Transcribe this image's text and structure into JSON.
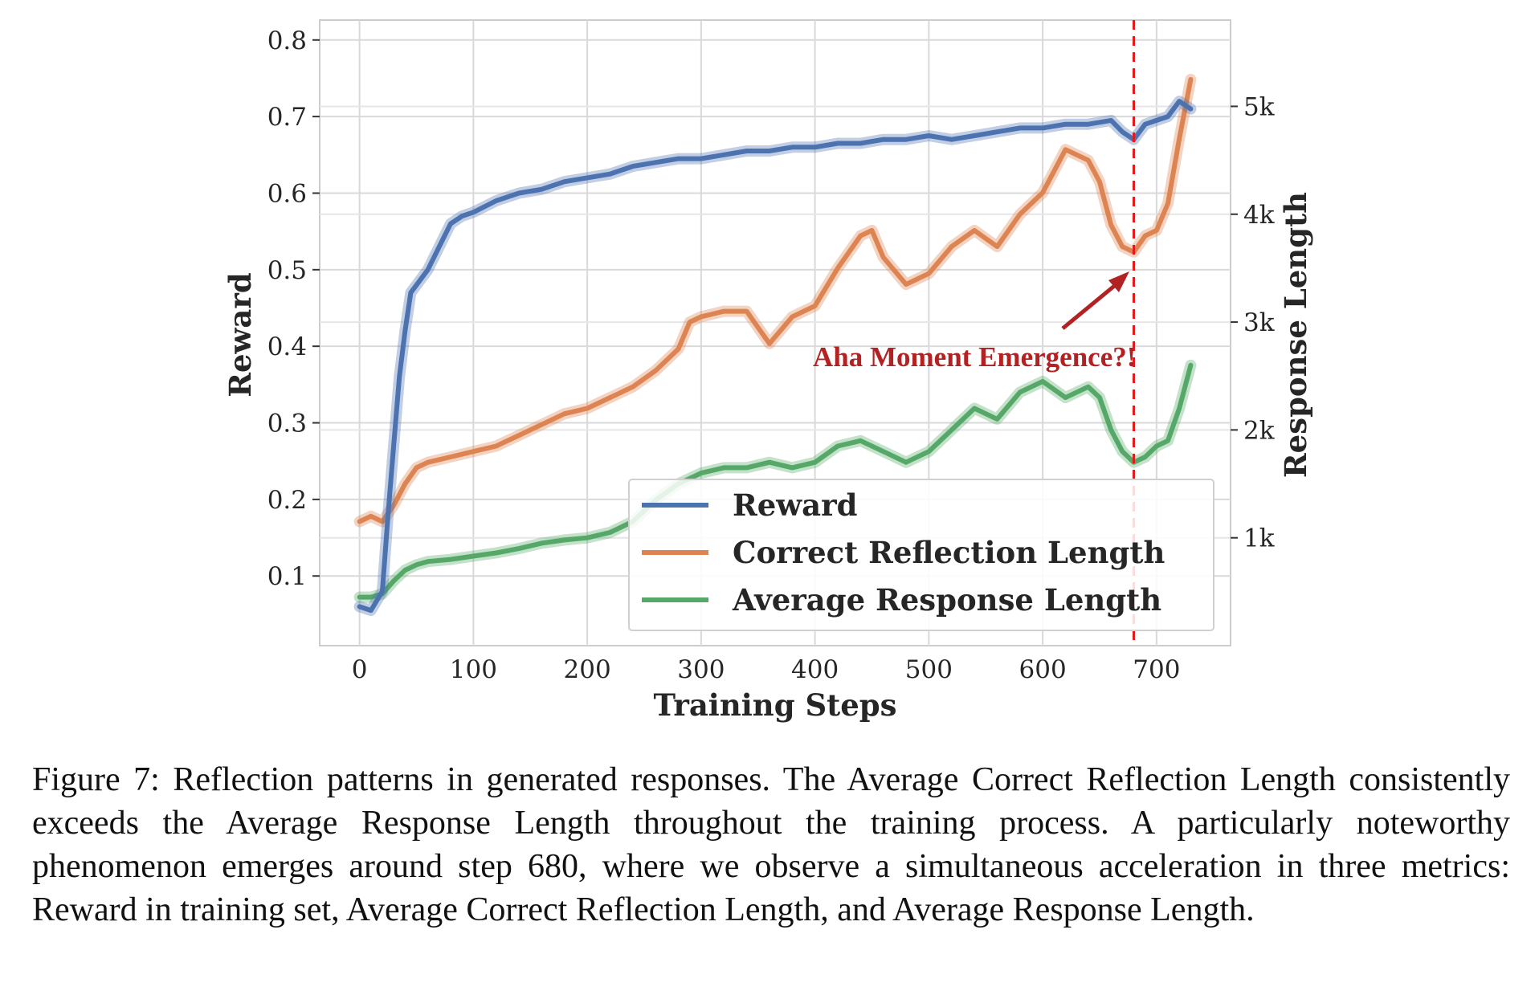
{
  "chart_data": {
    "type": "line",
    "xlabel": "Training Steps",
    "ylabel": "Reward",
    "y2label": "Response Length",
    "xlim": [
      -35,
      765
    ],
    "ylim": [
      0.009,
      0.826
    ],
    "y2lim": [
      0,
      5800
    ],
    "xticks": [
      0,
      100,
      200,
      300,
      400,
      500,
      600,
      700
    ],
    "yticks": [
      0.1,
      0.2,
      0.3,
      0.4,
      0.5,
      0.6,
      0.7,
      0.8
    ],
    "y2ticks": [
      1000,
      2000,
      3000,
      4000,
      5000
    ],
    "y2ticklabels": [
      "1k",
      "2k",
      "3k",
      "4k",
      "5k"
    ],
    "grid": true,
    "legend_position": "lower-right",
    "series": [
      {
        "name": "Reward",
        "axis": "left",
        "color": "#4c72b0",
        "x": [
          0,
          10,
          20,
          25,
          30,
          35,
          40,
          45,
          50,
          60,
          70,
          80,
          90,
          100,
          120,
          140,
          160,
          180,
          200,
          220,
          240,
          260,
          280,
          300,
          320,
          340,
          360,
          380,
          400,
          420,
          440,
          460,
          480,
          500,
          520,
          540,
          560,
          580,
          600,
          620,
          640,
          660,
          670,
          680,
          690,
          700,
          710,
          720,
          730
        ],
        "y": [
          0.06,
          0.055,
          0.08,
          0.18,
          0.27,
          0.36,
          0.42,
          0.47,
          0.48,
          0.5,
          0.53,
          0.56,
          0.57,
          0.575,
          0.59,
          0.6,
          0.605,
          0.615,
          0.62,
          0.625,
          0.635,
          0.64,
          0.645,
          0.645,
          0.65,
          0.655,
          0.655,
          0.66,
          0.66,
          0.665,
          0.665,
          0.67,
          0.67,
          0.675,
          0.67,
          0.675,
          0.68,
          0.685,
          0.685,
          0.69,
          0.69,
          0.695,
          0.68,
          0.67,
          0.69,
          0.695,
          0.7,
          0.72,
          0.71
        ]
      },
      {
        "name": "Correct Reflection Length",
        "axis": "right",
        "color": "#dd8452",
        "x": [
          0,
          10,
          20,
          30,
          40,
          50,
          60,
          80,
          100,
          120,
          140,
          160,
          180,
          200,
          220,
          240,
          260,
          280,
          290,
          300,
          320,
          340,
          350,
          360,
          380,
          400,
          420,
          440,
          450,
          460,
          480,
          500,
          520,
          540,
          560,
          580,
          600,
          620,
          640,
          650,
          660,
          670,
          680,
          690,
          700,
          710,
          720,
          730
        ],
        "y": [
          1150,
          1200,
          1150,
          1300,
          1500,
          1650,
          1700,
          1750,
          1800,
          1850,
          1950,
          2050,
          2150,
          2200,
          2300,
          2400,
          2550,
          2750,
          3000,
          3050,
          3100,
          3100,
          2950,
          2800,
          3050,
          3150,
          3500,
          3800,
          3850,
          3600,
          3350,
          3450,
          3700,
          3850,
          3700,
          4000,
          4200,
          4600,
          4500,
          4300,
          3900,
          3700,
          3650,
          3800,
          3850,
          4100,
          4700,
          5250
        ]
      },
      {
        "name": "Average Response Length",
        "axis": "right",
        "color": "#55a868",
        "x": [
          0,
          10,
          20,
          30,
          40,
          50,
          60,
          80,
          100,
          120,
          140,
          160,
          180,
          200,
          220,
          240,
          260,
          280,
          300,
          320,
          340,
          360,
          380,
          400,
          420,
          440,
          460,
          480,
          500,
          520,
          540,
          560,
          580,
          600,
          620,
          640,
          650,
          660,
          670,
          680,
          690,
          700,
          710,
          720,
          730
        ],
        "y": [
          450,
          450,
          480,
          600,
          700,
          750,
          780,
          800,
          830,
          860,
          900,
          950,
          980,
          1000,
          1050,
          1150,
          1350,
          1500,
          1600,
          1650,
          1650,
          1700,
          1650,
          1700,
          1850,
          1900,
          1800,
          1700,
          1800,
          2000,
          2200,
          2100,
          2350,
          2450,
          2300,
          2400,
          2300,
          2000,
          1800,
          1700,
          1750,
          1850,
          1900,
          2200,
          2600
        ]
      }
    ],
    "annotations": [
      {
        "text": "Aha Moment Emergence?!",
        "x": 680,
        "y": 0.5,
        "vline_x": 680,
        "color": "#b22222"
      }
    ]
  },
  "caption": "Figure 7: Reflection patterns in generated responses. The Average Correct Reflection Length consistently exceeds the Average Response Length throughout the training process. A particularly noteworthy phenomenon emerges around step 680, where we observe a simultaneous acceleration in three metrics: Reward in training set, Average Correct Reflection Length, and Average Response Length."
}
